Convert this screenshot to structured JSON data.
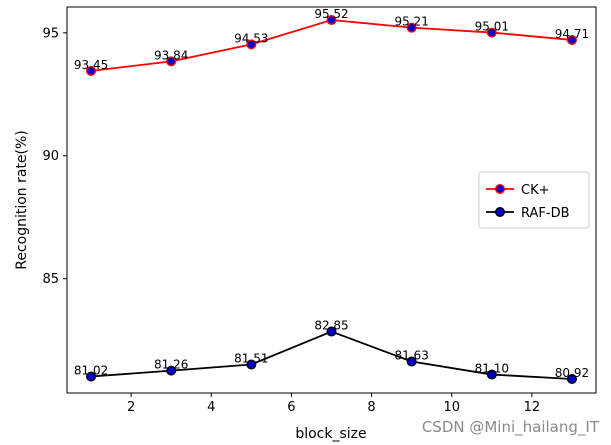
{
  "chart_data": {
    "type": "line",
    "title": "",
    "xlabel": "block_size",
    "ylabel": "Recognition rate(%)",
    "x": [
      1,
      3,
      5,
      7,
      9,
      11,
      13
    ],
    "xlim": [
      0.4,
      13.6
    ],
    "ylim": [
      80.35,
      96.05
    ],
    "xticks": [
      2,
      4,
      6,
      8,
      10,
      12
    ],
    "yticks": [
      85,
      90,
      95
    ],
    "grid": false,
    "legend_position": "center-right",
    "series": [
      {
        "name": "CK+",
        "values": [
          93.45,
          93.84,
          94.53,
          95.52,
          95.21,
          95.01,
          94.71
        ],
        "labels": [
          "93.45",
          "93.84",
          "94.53",
          "95.52",
          "95.21",
          "95.01",
          "94.71"
        ],
        "line_color": "#ff0000",
        "marker_face": "#0000cc",
        "marker_edge": "#ff0000"
      },
      {
        "name": "RAF-DB",
        "values": [
          81.02,
          81.26,
          81.51,
          82.85,
          81.63,
          81.1,
          80.92
        ],
        "labels": [
          "81.02",
          "81.26",
          "81.51",
          "82.85",
          "81.63",
          "81.10",
          "80.92"
        ],
        "line_color": "#000000",
        "marker_face": "#0000cc",
        "marker_edge": "#000000"
      }
    ]
  },
  "watermark": "CSDN @Mini_hailang_IT"
}
